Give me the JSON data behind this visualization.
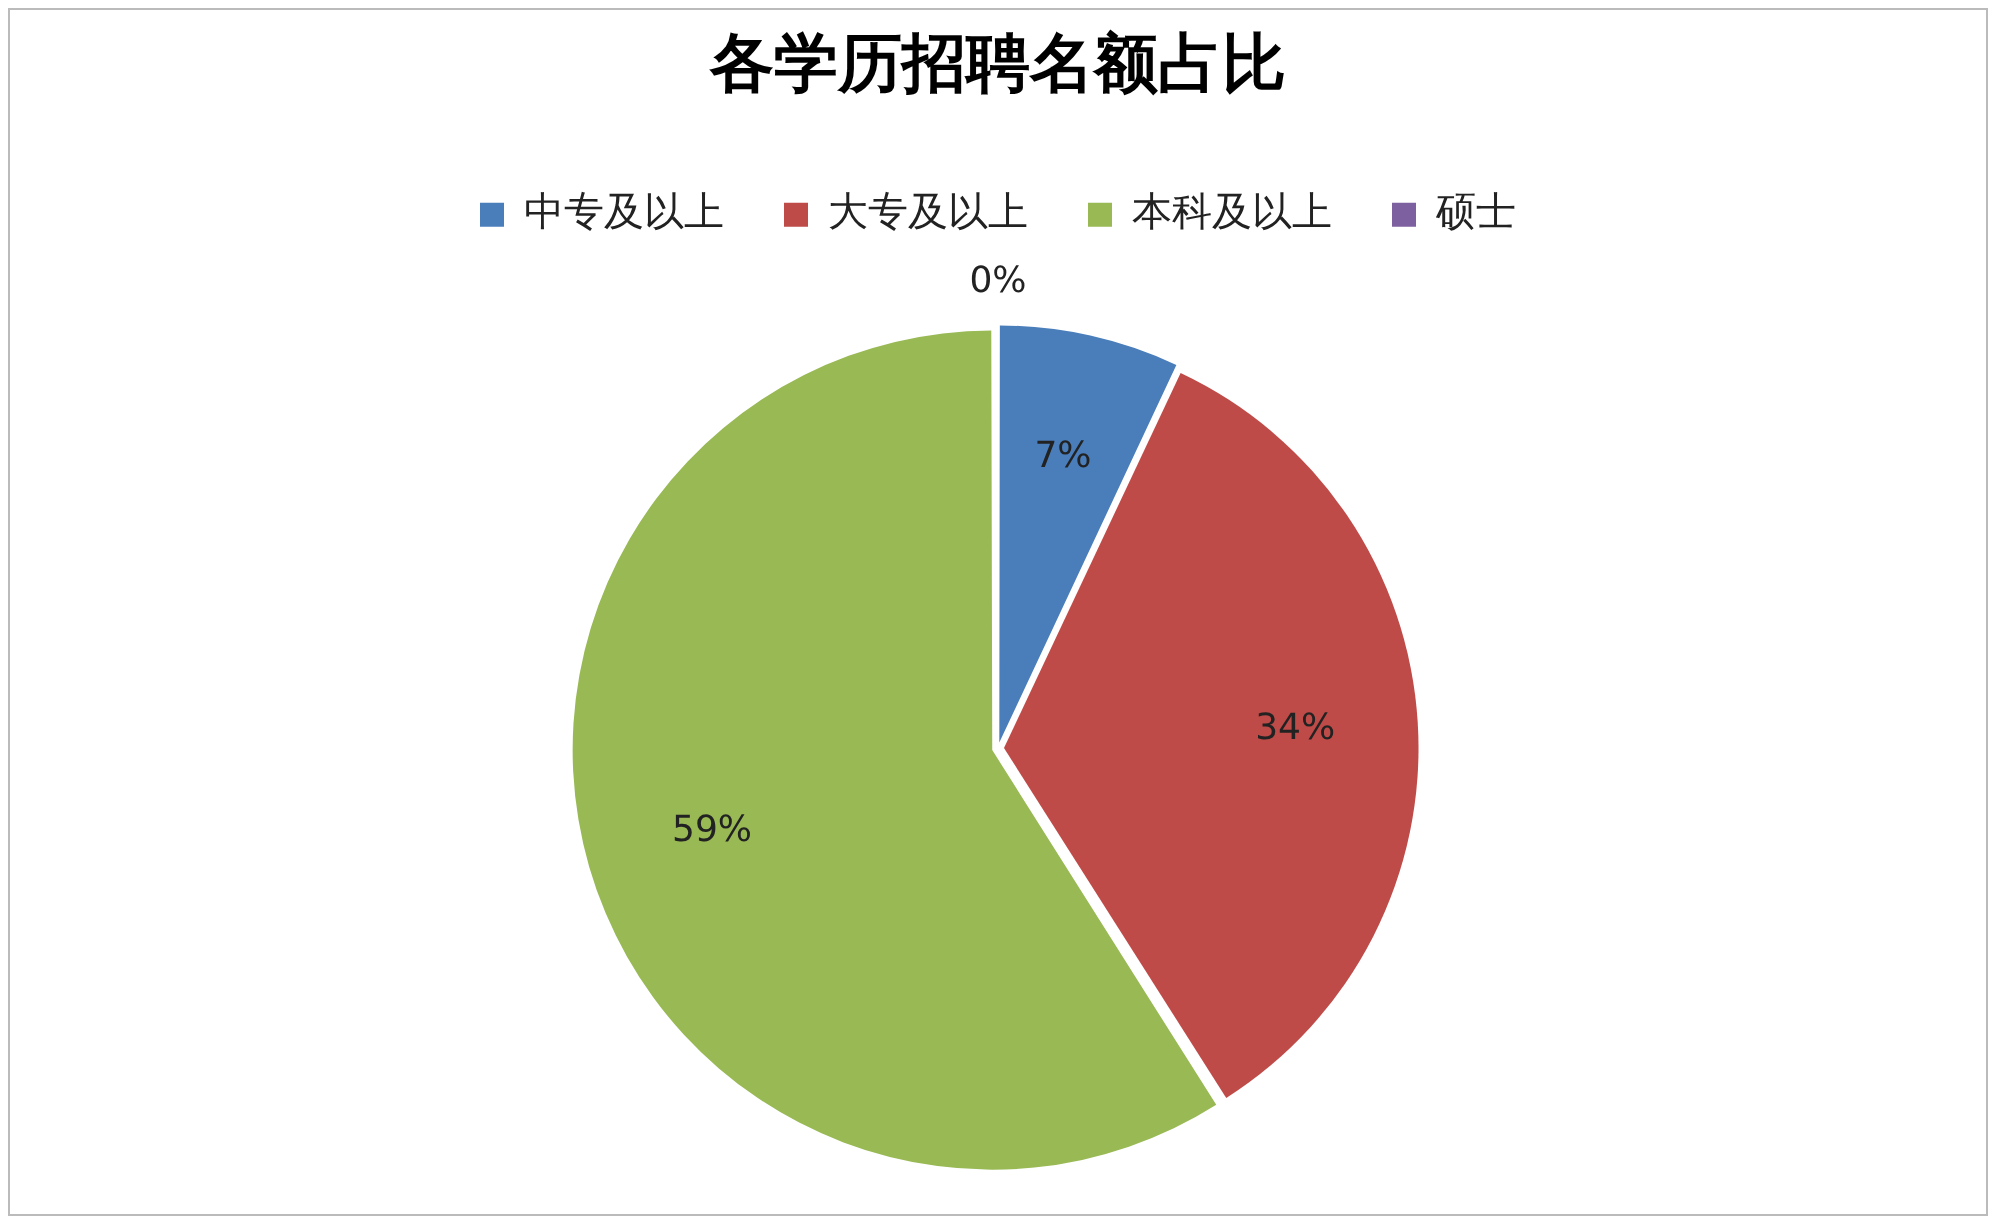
{
  "chart_data": {
    "type": "pie",
    "title": "各学历招聘名额占比",
    "categories": [
      "中专及以上",
      "大专及以上",
      "本科及以上",
      "硕士"
    ],
    "values": [
      7,
      34,
      59,
      0
    ],
    "colors": [
      "#4a7ebb",
      "#be4b48",
      "#98b954",
      "#7d60a0"
    ],
    "value_labels": [
      "7%",
      "34%",
      "59%",
      "0%"
    ],
    "legend": "top"
  }
}
